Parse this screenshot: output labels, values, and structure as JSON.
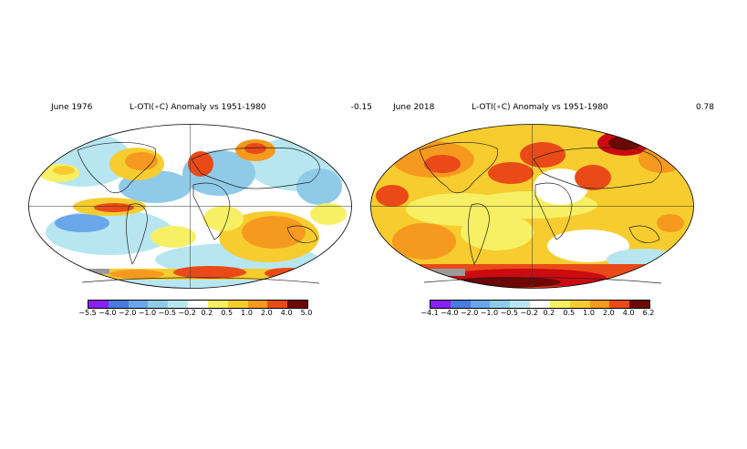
{
  "colors": {
    "scale": [
      "#8a1ff4",
      "#4a7ae0",
      "#6aa6ea",
      "#8fcbe8",
      "#b8e6f0",
      "#ffffff",
      "#f7f064",
      "#f7cc2e",
      "#f59a1e",
      "#ea4a18",
      "#cc0a10",
      "#6e0606"
    ],
    "land_outline": "#222222",
    "missing": "#9b9b9b"
  },
  "panels": [
    {
      "id": "left",
      "date": "June 1976",
      "title": "L-OTI(∘C) Anomaly vs 1951-1980",
      "mean": "-0.15",
      "ticks": [
        "−5.5",
        "−4.0",
        "−2.0",
        "−1.0",
        "−0.5",
        "−0.2",
        "0.2",
        "0.5",
        "1.0",
        "2.0",
        "4.0",
        "5.0"
      ]
    },
    {
      "id": "right",
      "date": "June 2018",
      "title": "L-OTI(∘C) Anomaly vs 1951-1980",
      "mean": "0.78",
      "ticks": [
        "−4.1",
        "−4.0",
        "−2.0",
        "−1.0",
        "−0.5",
        "−0.2",
        "0.2",
        "0.5",
        "1.0",
        "2.0",
        "4.0",
        "6.2"
      ]
    }
  ]
}
